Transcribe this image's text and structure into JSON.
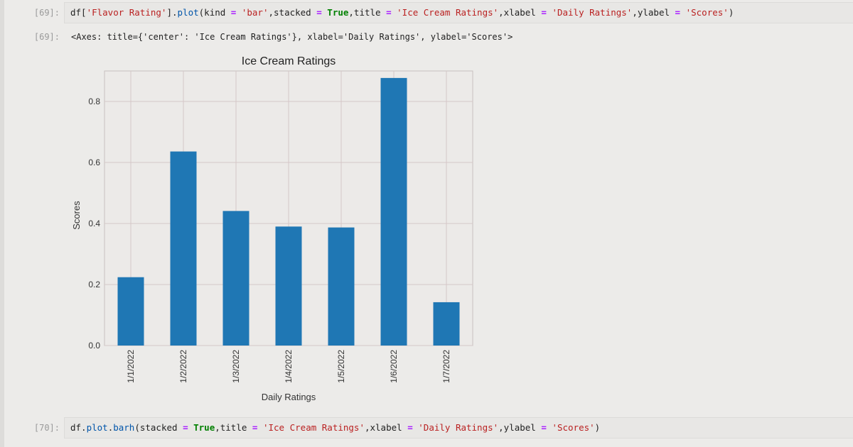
{
  "cells": [
    {
      "prompt": "[69]:",
      "code_tokens": [
        {
          "t": "df[",
          "c": ""
        },
        {
          "t": "'Flavor Rating'",
          "c": "tok-str"
        },
        {
          "t": "].",
          "c": ""
        },
        {
          "t": "plot",
          "c": "tok-fn"
        },
        {
          "t": "(kind ",
          "c": ""
        },
        {
          "t": "=",
          "c": "tok-op"
        },
        {
          "t": " ",
          "c": ""
        },
        {
          "t": "'bar'",
          "c": "tok-str"
        },
        {
          "t": ",stacked ",
          "c": ""
        },
        {
          "t": "=",
          "c": "tok-op"
        },
        {
          "t": " ",
          "c": ""
        },
        {
          "t": "True",
          "c": "tok-kw"
        },
        {
          "t": ",title ",
          "c": ""
        },
        {
          "t": "=",
          "c": "tok-op"
        },
        {
          "t": " ",
          "c": ""
        },
        {
          "t": "'Ice Cream Ratings'",
          "c": "tok-str"
        },
        {
          "t": ",xlabel ",
          "c": ""
        },
        {
          "t": "=",
          "c": "tok-op"
        },
        {
          "t": " ",
          "c": ""
        },
        {
          "t": "'Daily Ratings'",
          "c": "tok-str"
        },
        {
          "t": ",ylabel ",
          "c": ""
        },
        {
          "t": "=",
          "c": "tok-op"
        },
        {
          "t": " ",
          "c": ""
        },
        {
          "t": "'Scores'",
          "c": "tok-str"
        },
        {
          "t": ")",
          "c": ""
        }
      ],
      "output_prompt": "[69]:",
      "output_text": "<Axes: title={'center': 'Ice Cream Ratings'}, xlabel='Daily Ratings', ylabel='Scores'>"
    },
    {
      "prompt": "[70]:",
      "code_tokens": [
        {
          "t": "df.",
          "c": ""
        },
        {
          "t": "plot",
          "c": "tok-fn"
        },
        {
          "t": ".",
          "c": ""
        },
        {
          "t": "barh",
          "c": "tok-fn"
        },
        {
          "t": "(stacked ",
          "c": ""
        },
        {
          "t": "=",
          "c": "tok-op"
        },
        {
          "t": " ",
          "c": ""
        },
        {
          "t": "True",
          "c": "tok-kw"
        },
        {
          "t": ",title ",
          "c": ""
        },
        {
          "t": "=",
          "c": "tok-op"
        },
        {
          "t": " ",
          "c": ""
        },
        {
          "t": "'Ice Cream Ratings'",
          "c": "tok-str"
        },
        {
          "t": ",xlabel ",
          "c": ""
        },
        {
          "t": "=",
          "c": "tok-op"
        },
        {
          "t": " ",
          "c": ""
        },
        {
          "t": "'Daily Ratings'",
          "c": "tok-str"
        },
        {
          "t": ",ylabel ",
          "c": ""
        },
        {
          "t": "=",
          "c": "tok-op"
        },
        {
          "t": " ",
          "c": ""
        },
        {
          "t": "'Scores'",
          "c": "tok-str"
        },
        {
          "t": ")",
          "c": ""
        }
      ]
    }
  ],
  "chart_data": {
    "type": "bar",
    "title": "Ice Cream Ratings",
    "xlabel": "Daily Ratings",
    "ylabel": "Scores",
    "categories": [
      "1/1/2022",
      "1/2/2022",
      "1/3/2022",
      "1/4/2022",
      "1/5/2022",
      "1/6/2022",
      "1/7/2022"
    ],
    "values": [
      0.224,
      0.636,
      0.441,
      0.39,
      0.387,
      0.877,
      0.142
    ],
    "ylim": [
      0,
      0.9
    ],
    "yticks": [
      0.0,
      0.2,
      0.4,
      0.6,
      0.8
    ],
    "ytick_labels": [
      "0.0",
      "0.2",
      "0.4",
      "0.6",
      "0.8"
    ],
    "grid": true,
    "legend": "none",
    "bar_color": "#1f77b4",
    "plot_bg": "#eceae8",
    "grid_color": "#d5c8c8"
  }
}
